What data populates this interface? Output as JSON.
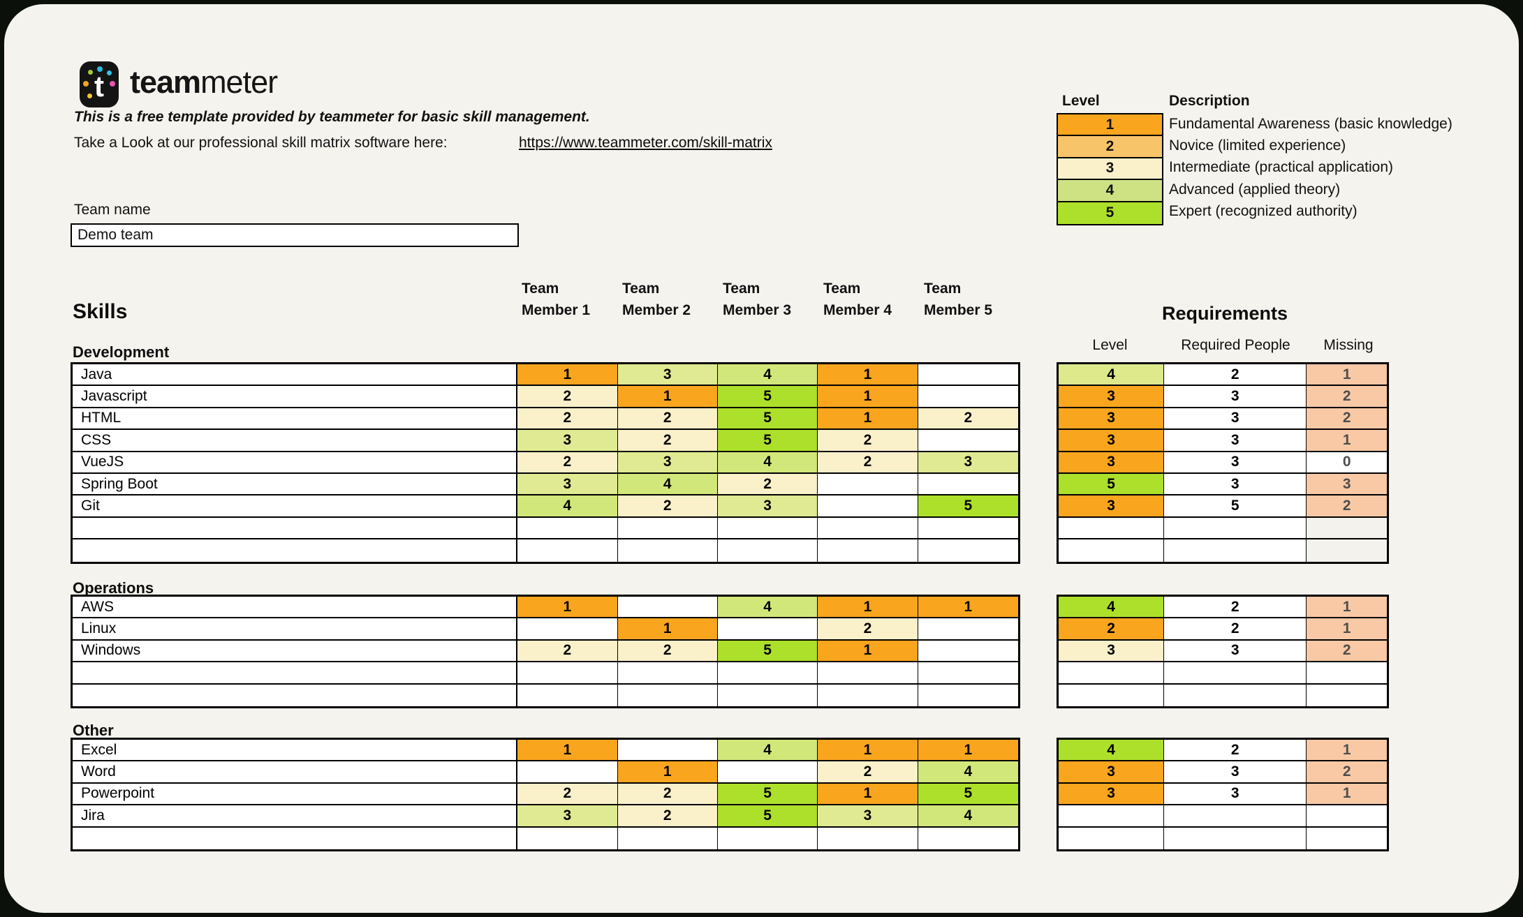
{
  "brand": {
    "bold": "team",
    "light": "meter",
    "logo_letter": "t"
  },
  "intro": {
    "line1": "This is a free template provided by teammeter for basic skill management.",
    "line2": "Take a Look at our professional skill matrix software here:",
    "link": "https://www.teammeter.com/skill-matrix"
  },
  "legend": {
    "level_header": "Level",
    "description_header": "Description",
    "rows": [
      {
        "level": "1",
        "color": "#FAA51E",
        "description": "Fundamental Awareness (basic knowledge)"
      },
      {
        "level": "2",
        "color": "#F8C46A",
        "description": "Novice (limited experience)"
      },
      {
        "level": "3",
        "color": "#FAF0CA",
        "description": "Intermediate (practical application)"
      },
      {
        "level": "4",
        "color": "#CEE284",
        "description": "Advanced (applied theory)"
      },
      {
        "level": "5",
        "color": "#ADE02A",
        "description": "Expert (recognized authority)"
      }
    ]
  },
  "team": {
    "label": "Team name",
    "value": "Demo team"
  },
  "matrix": {
    "skills_header": "Skills",
    "requirements_header": "Requirements",
    "member_headers": [
      [
        "Team",
        "Member 1"
      ],
      [
        "Team",
        "Member 2"
      ],
      [
        "Team",
        "Member 3"
      ],
      [
        "Team",
        "Member 4"
      ],
      [
        "Team",
        "Member 5"
      ]
    ],
    "req_columns": [
      "Level",
      "Required People",
      "Missing"
    ],
    "colors": {
      "level_1": "#FAA51E",
      "level_2": "#FAF0CA",
      "level_3": "#E0EA92",
      "level_4": "#D2E77A",
      "level_5": "#ADE02A",
      "req_orange": "#FAA51E",
      "req_cream": "#FAF0CA",
      "req_pale": "#DDE98B",
      "req_bright": "#ADE02A",
      "missing_salmon": "#F9C9A5",
      "missing_white": "#FFFFFF",
      "missing_muted": "#F4F2EC",
      "missing_text": "#4D4D4D"
    },
    "sections": [
      {
        "name": "Development",
        "rows": [
          {
            "skill": "Java",
            "levels": [
              "1",
              "3",
              "4",
              "1",
              ""
            ],
            "req_level": "4",
            "req_level_color": "pale",
            "required": "2",
            "missing": "1",
            "missing_color": "salmon"
          },
          {
            "skill": "Javascript",
            "levels": [
              "2",
              "1",
              "5",
              "1",
              ""
            ],
            "req_level": "3",
            "req_level_color": "orange",
            "required": "3",
            "missing": "2",
            "missing_color": "salmon"
          },
          {
            "skill": "HTML",
            "levels": [
              "2",
              "2",
              "5",
              "1",
              "2"
            ],
            "req_level": "3",
            "req_level_color": "orange",
            "required": "3",
            "missing": "2",
            "missing_color": "salmon"
          },
          {
            "skill": "CSS",
            "levels": [
              "3",
              "2",
              "5",
              "2",
              ""
            ],
            "req_level": "3",
            "req_level_color": "orange",
            "required": "3",
            "missing": "1",
            "missing_color": "salmon"
          },
          {
            "skill": "VueJS",
            "levels": [
              "2",
              "3",
              "4",
              "2",
              "3"
            ],
            "req_level": "3",
            "req_level_color": "orange",
            "required": "3",
            "missing": "0",
            "missing_color": "white"
          },
          {
            "skill": "Spring Boot",
            "levels": [
              "3",
              "4",
              "2",
              "",
              ""
            ],
            "req_level": "5",
            "req_level_color": "bright",
            "required": "3",
            "missing": "3",
            "missing_color": "salmon"
          },
          {
            "skill": "Git",
            "levels": [
              "4",
              "2",
              "3",
              "",
              "5"
            ],
            "req_level": "3",
            "req_level_color": "orange",
            "required": "5",
            "missing": "2",
            "missing_color": "salmon"
          },
          {
            "skill": "",
            "levels": [
              "",
              "",
              "",
              "",
              ""
            ],
            "req_level": "",
            "req_level_color": "",
            "required": "",
            "missing": "",
            "missing_color": "muted"
          },
          {
            "skill": "",
            "levels": [
              "",
              "",
              "",
              "",
              ""
            ],
            "req_level": "",
            "req_level_color": "",
            "required": "",
            "missing": "",
            "missing_color": "muted"
          }
        ]
      },
      {
        "name": "Operations",
        "rows": [
          {
            "skill": "AWS",
            "levels": [
              "1",
              "",
              "4",
              "1",
              "1"
            ],
            "req_level": "4",
            "req_level_color": "bright",
            "required": "2",
            "missing": "1",
            "missing_color": "salmon"
          },
          {
            "skill": "Linux",
            "levels": [
              "",
              "1",
              "",
              "2",
              ""
            ],
            "req_level": "2",
            "req_level_color": "orange",
            "required": "2",
            "missing": "1",
            "missing_color": "salmon"
          },
          {
            "skill": "Windows",
            "levels": [
              "2",
              "2",
              "5",
              "1",
              ""
            ],
            "req_level": "3",
            "req_level_color": "cream",
            "required": "3",
            "missing": "2",
            "missing_color": "salmon"
          },
          {
            "skill": "",
            "levels": [
              "",
              "",
              "",
              "",
              ""
            ],
            "req_level": "",
            "req_level_color": "",
            "required": "",
            "missing": "",
            "missing_color": "white"
          },
          {
            "skill": "",
            "levels": [
              "",
              "",
              "",
              "",
              ""
            ],
            "req_level": "",
            "req_level_color": "",
            "required": "",
            "missing": "",
            "missing_color": "white"
          }
        ]
      },
      {
        "name": "Other",
        "rows": [
          {
            "skill": "Excel",
            "levels": [
              "1",
              "",
              "4",
              "1",
              "1"
            ],
            "req_level": "4",
            "req_level_color": "bright",
            "required": "2",
            "missing": "1",
            "missing_color": "salmon"
          },
          {
            "skill": "Word",
            "levels": [
              "",
              "1",
              "",
              "2",
              "4"
            ],
            "req_level": "3",
            "req_level_color": "orange",
            "required": "3",
            "missing": "2",
            "missing_color": "salmon"
          },
          {
            "skill": "Powerpoint",
            "levels": [
              "2",
              "2",
              "5",
              "1",
              "5"
            ],
            "req_level": "3",
            "req_level_color": "orange",
            "required": "3",
            "missing": "1",
            "missing_color": "salmon"
          },
          {
            "skill": "Jira",
            "levels": [
              "3",
              "2",
              "5",
              "3",
              "4"
            ],
            "req_level": "",
            "req_level_color": "",
            "required": "",
            "missing": "",
            "missing_color": "white"
          },
          {
            "skill": "",
            "levels": [
              "",
              "",
              "",
              "",
              ""
            ],
            "req_level": "",
            "req_level_color": "",
            "required": "",
            "missing": "",
            "missing_color": "white"
          }
        ]
      }
    ]
  }
}
